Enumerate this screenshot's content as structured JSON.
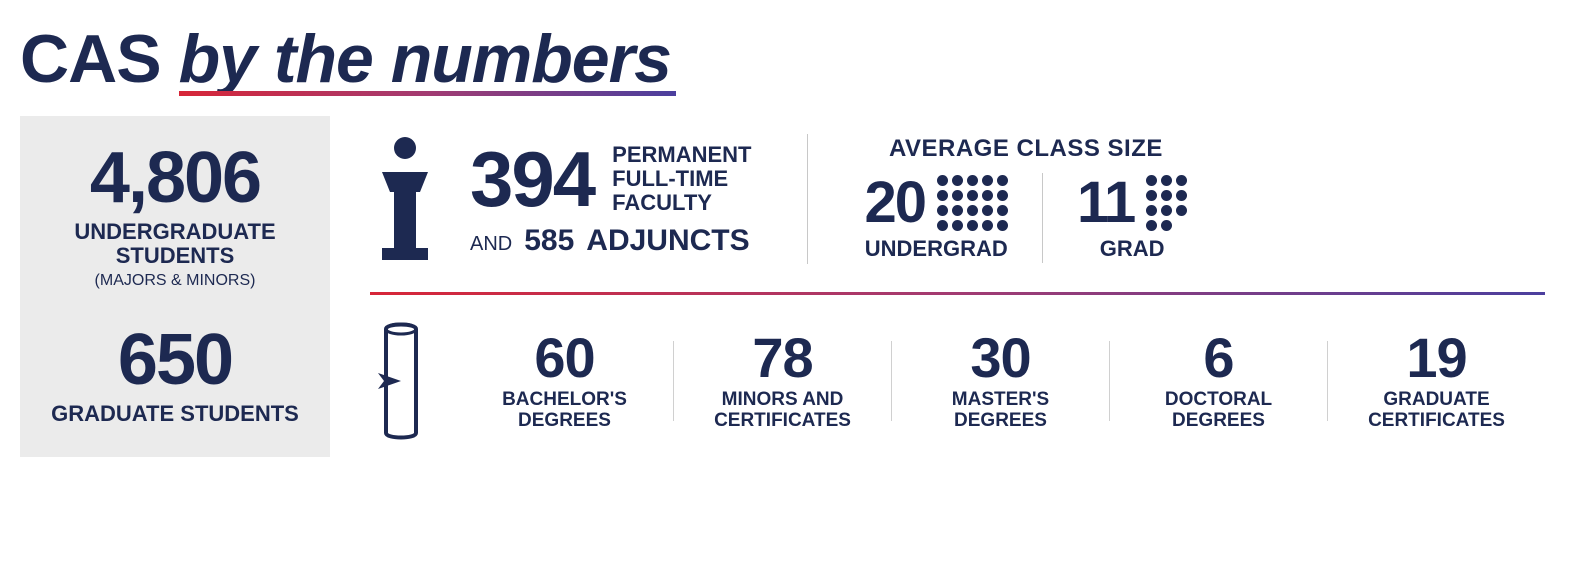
{
  "colors": {
    "primary": "#1d2951",
    "bg_gray": "#ebebeb",
    "gradient_start": "#d72638",
    "gradient_mid": "#a23b72",
    "gradient_end": "#4b3f9e"
  },
  "title": {
    "plain": "CAS",
    "italic": "by the numbers"
  },
  "students": {
    "undergrad": {
      "value": "4,806",
      "label": "UNDERGRADUATE STUDENTS",
      "sublabel": "(MAJORS & MINORS)"
    },
    "grad": {
      "value": "650",
      "label": "GRADUATE STUDENTS"
    }
  },
  "faculty": {
    "permanent_value": "394",
    "permanent_label": "PERMANENT FULL-TIME FACULTY",
    "and": "AND",
    "adjunct_value": "585",
    "adjunct_label": "ADJUNCTS"
  },
  "class_size": {
    "title": "AVERAGE CLASS SIZE",
    "undergrad": {
      "value": "20",
      "label": "UNDERGRAD",
      "dot_cols": 5,
      "dot_rows": 4
    },
    "grad": {
      "value": "11",
      "label": "GRAD",
      "dot_cols": 3,
      "dot_rows": 4,
      "dot_count": 11
    }
  },
  "degrees": [
    {
      "value": "60",
      "label": "BACHELOR'S DEGREES"
    },
    {
      "value": "78",
      "label": "MINORS AND CERTIFICATES"
    },
    {
      "value": "30",
      "label": "MASTER'S DEGREES"
    },
    {
      "value": "6",
      "label": "DOCTORAL DEGREES"
    },
    {
      "value": "19",
      "label": "GRADUATE CERTIFICATES"
    }
  ]
}
